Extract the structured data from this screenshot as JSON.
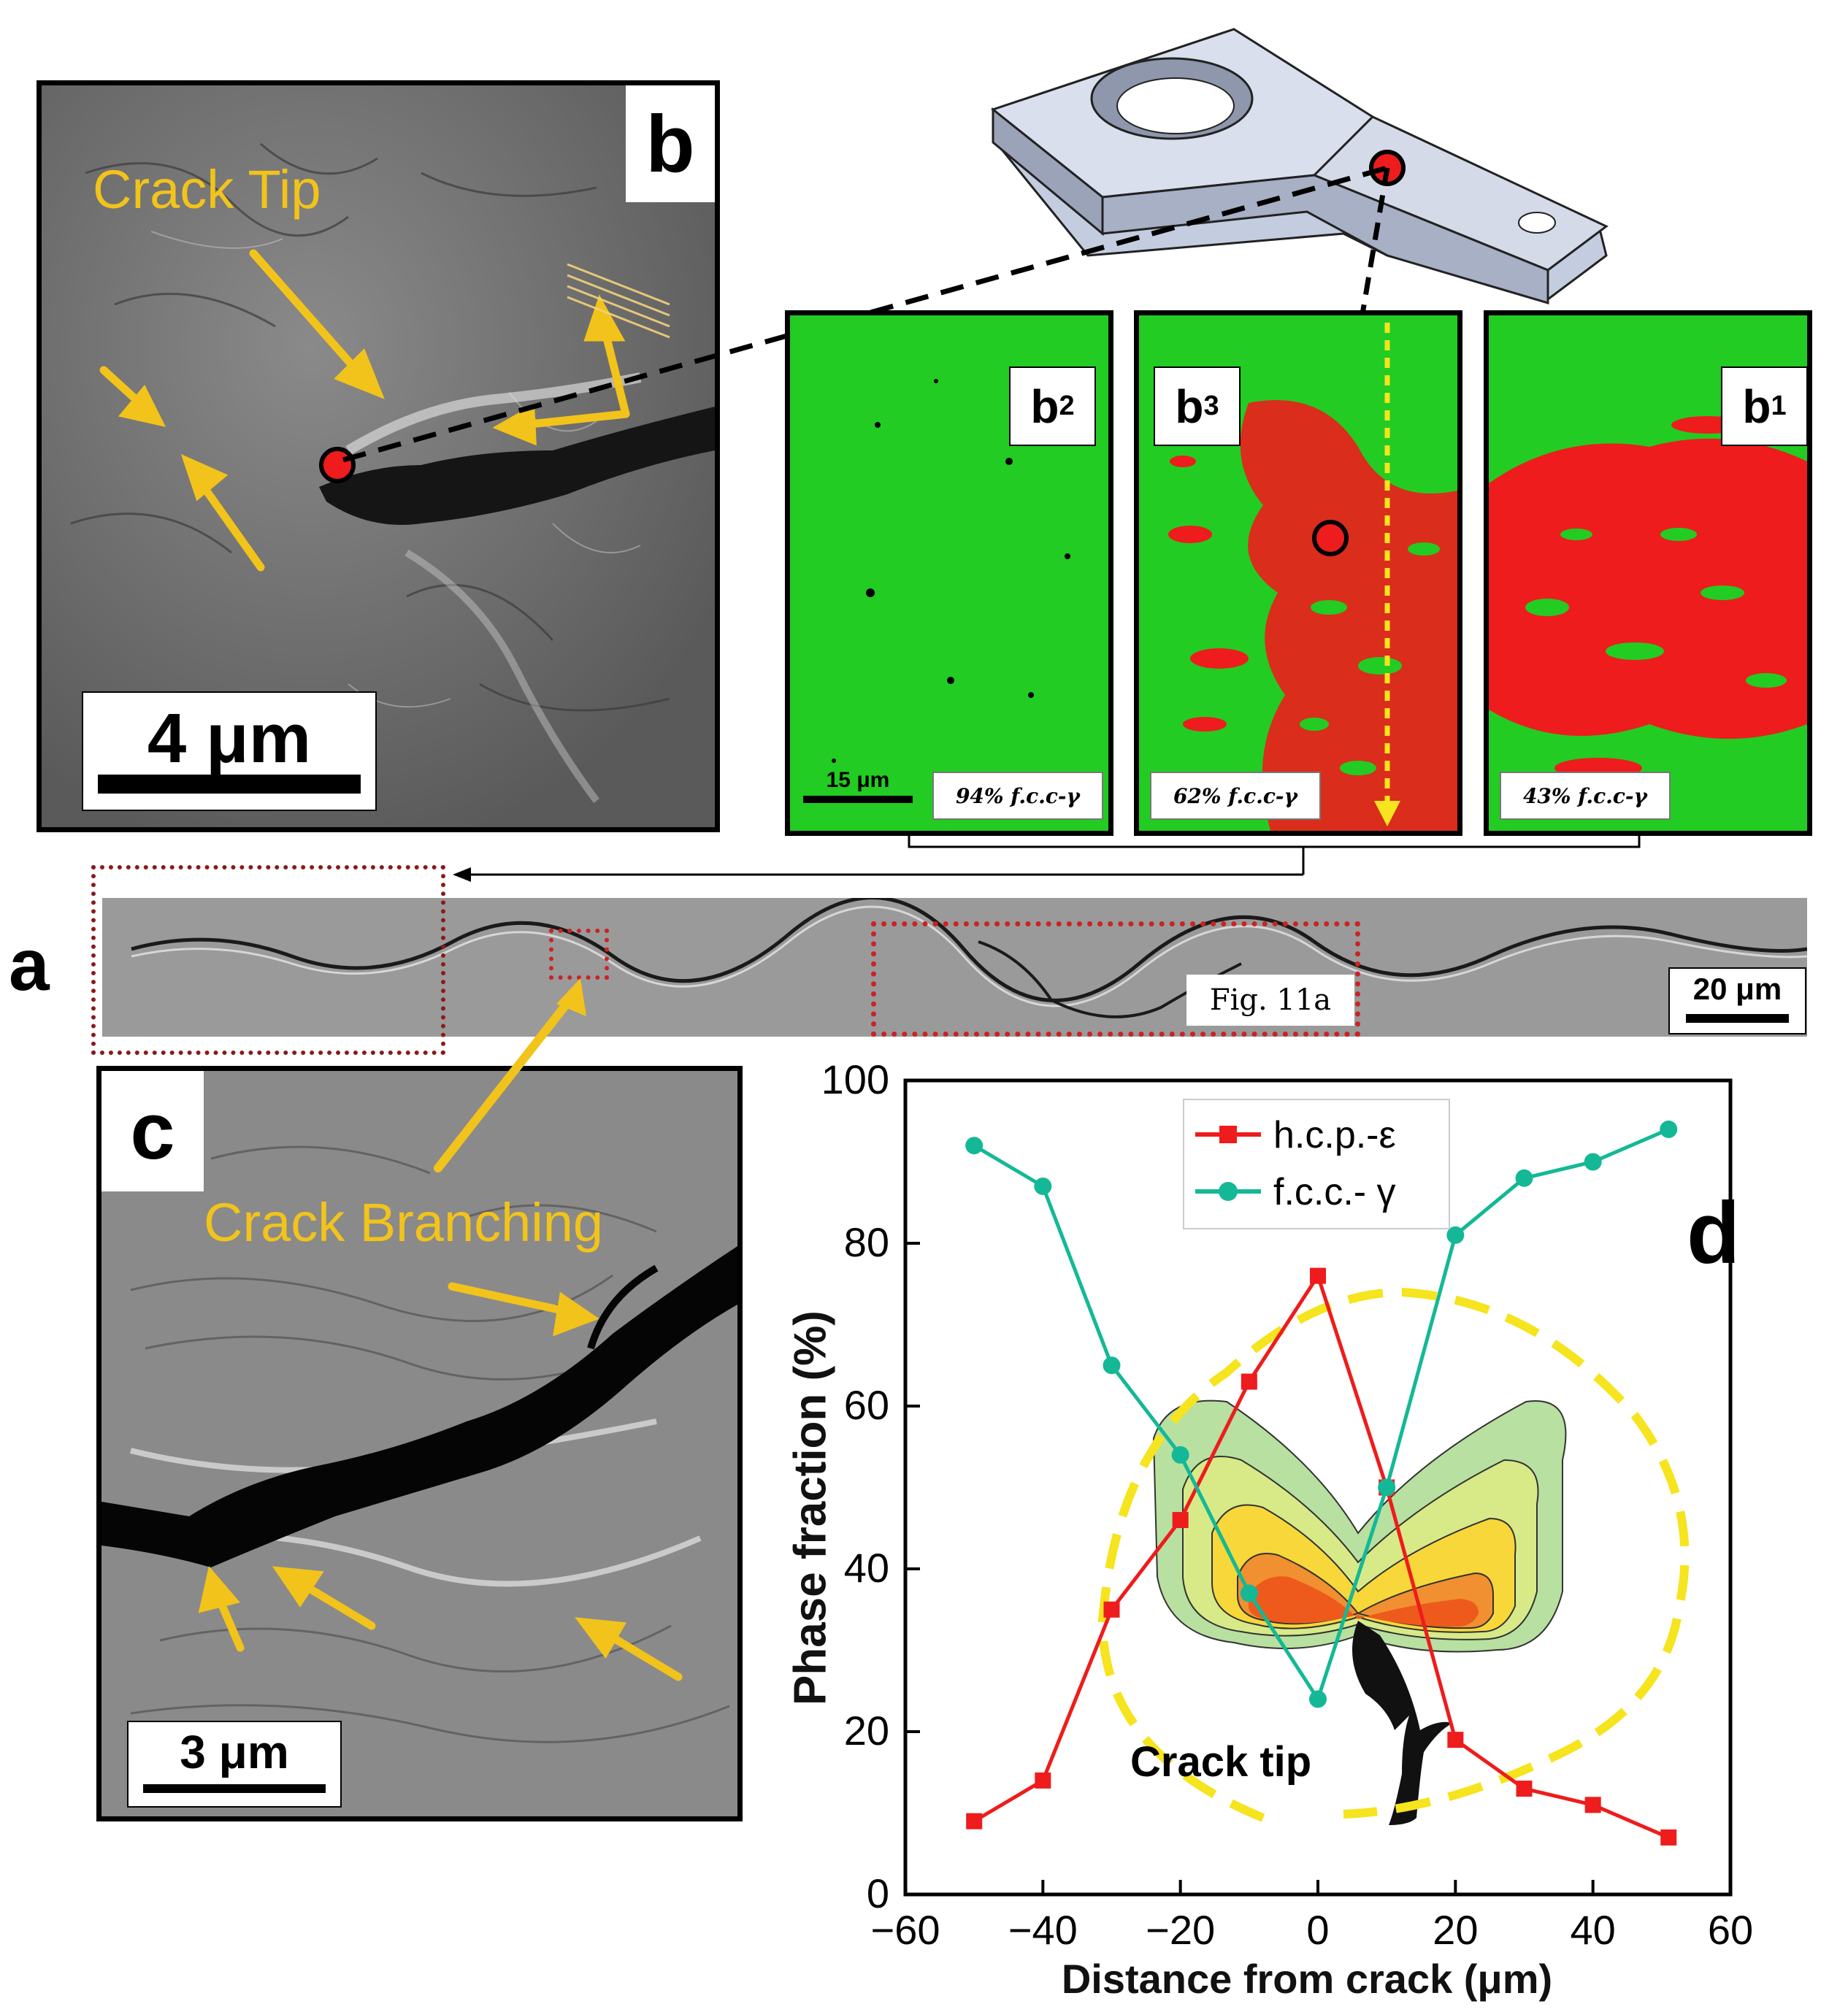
{
  "panel_b": {
    "label": "b",
    "annotation": "Crack Tip",
    "scalebar": "4 μm",
    "annotation_color": "#f2c31a"
  },
  "panel_c": {
    "label": "c",
    "annotation": "Crack Branching",
    "scalebar": "3 μm"
  },
  "panel_a": {
    "label": "a",
    "figure_ref": "Fig. 11a",
    "scalebar": "20 μm"
  },
  "maps": {
    "b2": {
      "letter": "b",
      "index": "2",
      "fraction": "94% f.c.c-γ",
      "scalebar": "15 μm",
      "fcc_fraction": 94
    },
    "b3": {
      "letter": "b",
      "index": "3",
      "fraction": "62% f.c.c-γ",
      "fcc_fraction": 62
    },
    "b1": {
      "letter": "b",
      "index": "1",
      "fraction": "43% f.c.c-γ",
      "fcc_fraction": 43
    },
    "fcc_color": "#22cc22",
    "hcp_color": "#ee1c1c"
  },
  "chart_data": {
    "type": "line",
    "panel_label": "d",
    "xlabel": "Distance from crack (μm)",
    "ylabel": "Phase fraction (%)",
    "xlim": [
      -60,
      60
    ],
    "ylim": [
      0,
      100
    ],
    "xticks": [
      "−60",
      "−40",
      "−20",
      "0",
      "20",
      "40",
      "60"
    ],
    "yticks": [
      "0",
      "20",
      "40",
      "60",
      "80",
      "100"
    ],
    "legend_position": "top-center",
    "annotation": "Crack tip",
    "grid": false,
    "series": [
      {
        "name": "h.c.p.-ε",
        "color": "#ee1c1c",
        "marker": "square",
        "x": [
          -50,
          -40,
          -30,
          -20,
          -10,
          0,
          10,
          20,
          30,
          40,
          51
        ],
        "y": [
          9,
          14,
          35,
          46,
          63,
          76,
          50,
          19,
          13,
          11,
          7
        ]
      },
      {
        "name": "f.c.c.- γ",
        "color": "#14b896",
        "marker": "circle",
        "x": [
          -50,
          -40,
          -30,
          -20,
          -10,
          0,
          10,
          20,
          30,
          40,
          51
        ],
        "y": [
          92,
          87,
          65,
          54,
          37,
          24,
          50,
          81,
          88,
          90,
          94
        ]
      }
    ]
  }
}
